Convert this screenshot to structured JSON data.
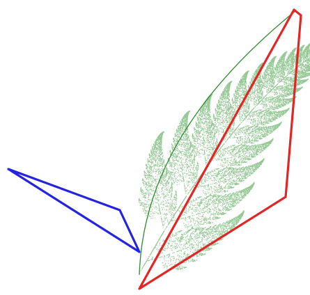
{
  "colors": {
    "background": "#ffffff",
    "fern": "#3f9a3f",
    "stem": "#2f8a2f",
    "red_outline": "#e22626",
    "blue_outline": "#2424e0"
  },
  "figure": {
    "subject": "fern-fractal",
    "overlays": [
      "red-quadrilateral",
      "blue-triangle"
    ]
  }
}
